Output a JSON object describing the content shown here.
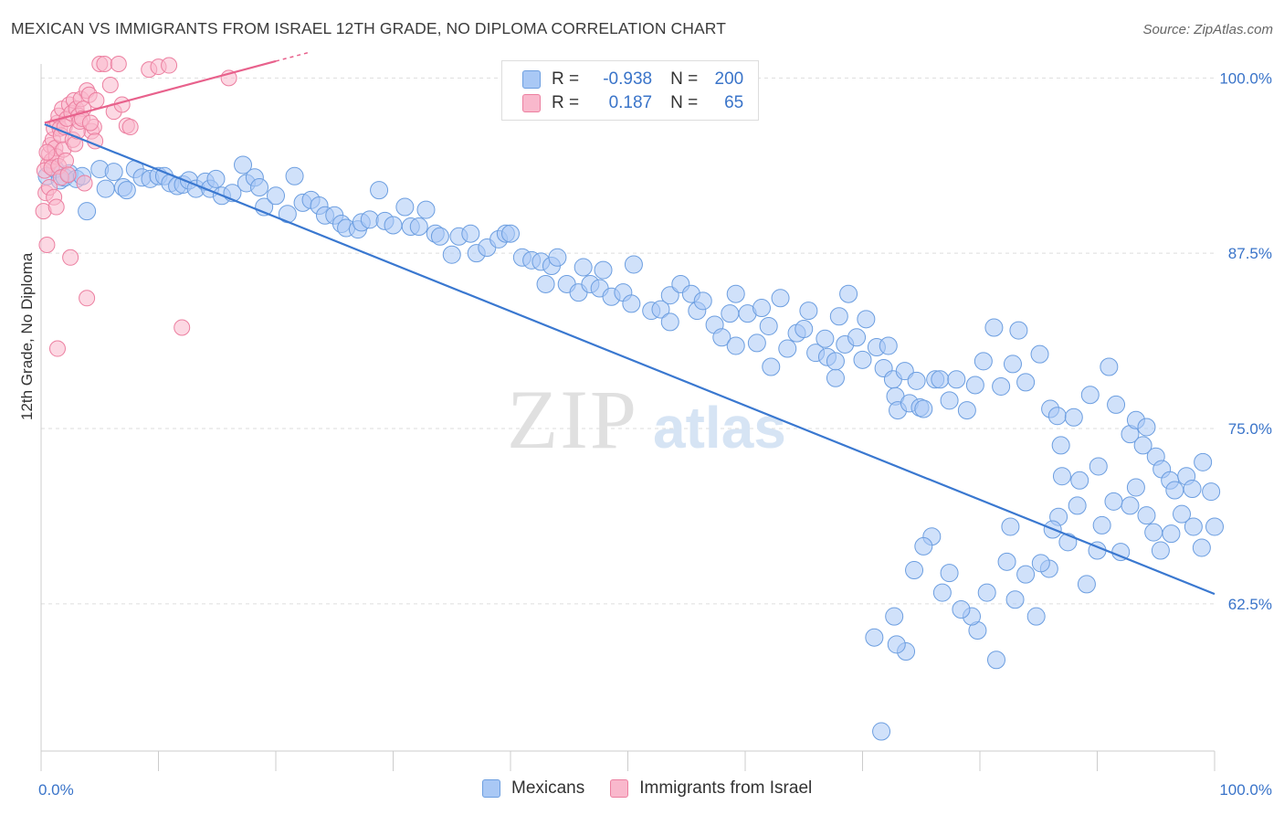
{
  "title": "MEXICAN VS IMMIGRANTS FROM ISRAEL 12TH GRADE, NO DIPLOMA CORRELATION CHART",
  "source": "Source: ZipAtlas.com",
  "watermark": {
    "zip": "ZIP",
    "atlas": "atlas"
  },
  "legend": {
    "rows": [
      {
        "r_label": "R =",
        "r_value": "-0.938",
        "n_label": "N =",
        "n_value": "200",
        "color": "#a9c8f5",
        "border": "#6c9ee0"
      },
      {
        "r_label": "R =",
        "r_value": "0.187",
        "n_label": "N =",
        "n_value": "65",
        "color": "#f9b8cc",
        "border": "#ec7fa0"
      }
    ]
  },
  "colors": {
    "mexicans_fill": "#a9c8f5",
    "mexicans_stroke": "#6c9ee0",
    "mexicans_line": "#3a78d0",
    "israel_fill": "#f9b8cc",
    "israel_stroke": "#ec7fa0",
    "israel_line": "#e8618c",
    "axis_text": "#3a74c9",
    "grid": "#dddddd"
  },
  "chart_data": {
    "type": "scatter",
    "title": "MEXICAN VS IMMIGRANTS FROM ISRAEL 12TH GRADE, NO DIPLOMA CORRELATION CHART",
    "xlabel": "",
    "ylabel": "12th Grade, No Diploma",
    "xlim": [
      0,
      100
    ],
    "ylim": [
      52,
      101
    ],
    "x_tick_labels": [
      "0.0%",
      "100.0%"
    ],
    "y_tick_labels": [
      "100.0%",
      "87.5%",
      "75.0%",
      "62.5%"
    ],
    "y_ticks": [
      100,
      87.5,
      75,
      62.5
    ],
    "grid": true,
    "legend_placement": "bottom-center",
    "series": [
      {
        "name": "Mexicans",
        "r": -0.938,
        "n": 200,
        "trend": {
          "x": [
            0.3,
            100
          ],
          "y": [
            96.7,
            63.2
          ]
        },
        "points": [
          [
            0.5,
            93
          ],
          [
            1.2,
            93.5
          ],
          [
            1.6,
            92.7
          ],
          [
            2,
            92.9
          ],
          [
            2.4,
            93.2
          ],
          [
            3,
            92.8
          ],
          [
            3.5,
            93
          ],
          [
            3.9,
            90.5
          ],
          [
            5,
            93.5
          ],
          [
            5.5,
            92.1
          ],
          [
            6.2,
            93.3
          ],
          [
            7,
            92.2
          ],
          [
            7.3,
            92
          ],
          [
            8,
            93.5
          ],
          [
            8.6,
            92.9
          ],
          [
            9.3,
            92.8
          ],
          [
            10,
            93
          ],
          [
            10.5,
            93
          ],
          [
            11,
            92.5
          ],
          [
            11.6,
            92.3
          ],
          [
            12.1,
            92.4
          ],
          [
            12.6,
            92.7
          ],
          [
            13.2,
            92.1
          ],
          [
            14,
            92.6
          ],
          [
            14.4,
            92.1
          ],
          [
            14.9,
            92.8
          ],
          [
            15.4,
            91.6
          ],
          [
            16.3,
            91.8
          ],
          [
            17.2,
            93.8
          ],
          [
            17.5,
            92.5
          ],
          [
            18.2,
            92.9
          ],
          [
            18.6,
            92.2
          ],
          [
            19,
            90.8
          ],
          [
            20,
            91.6
          ],
          [
            21,
            90.3
          ],
          [
            21.6,
            93
          ],
          [
            22.3,
            91.1
          ],
          [
            23,
            91.3
          ],
          [
            23.7,
            90.9
          ],
          [
            24.2,
            90.2
          ],
          [
            25,
            90.2
          ],
          [
            25.6,
            89.6
          ],
          [
            26,
            89.3
          ],
          [
            27,
            89.2
          ],
          [
            27.3,
            89.7
          ],
          [
            28,
            89.9
          ],
          [
            28.8,
            92
          ],
          [
            29.3,
            89.8
          ],
          [
            30,
            89.5
          ],
          [
            31,
            90.8
          ],
          [
            31.5,
            89.4
          ],
          [
            32.2,
            89.4
          ],
          [
            32.8,
            90.6
          ],
          [
            33.6,
            88.9
          ],
          [
            34,
            88.7
          ],
          [
            35,
            87.4
          ],
          [
            35.6,
            88.7
          ],
          [
            36.6,
            88.9
          ],
          [
            37.1,
            87.5
          ],
          [
            38,
            87.9
          ],
          [
            39,
            88.5
          ],
          [
            39.6,
            88.9
          ],
          [
            40,
            88.9
          ],
          [
            41,
            87.2
          ],
          [
            41.8,
            87
          ],
          [
            42.6,
            86.9
          ],
          [
            43,
            85.3
          ],
          [
            43.5,
            86.6
          ],
          [
            44,
            87.2
          ],
          [
            44.8,
            85.3
          ],
          [
            45.8,
            84.7
          ],
          [
            46.2,
            86.5
          ],
          [
            46.8,
            85.3
          ],
          [
            47.6,
            85
          ],
          [
            47.9,
            86.3
          ],
          [
            48.6,
            84.4
          ],
          [
            49.6,
            84.7
          ],
          [
            50.3,
            83.9
          ],
          [
            50.5,
            86.7
          ],
          [
            52,
            83.4
          ],
          [
            52.8,
            83.5
          ],
          [
            53.6,
            84.5
          ],
          [
            53.6,
            82.6
          ],
          [
            54.5,
            85.3
          ],
          [
            55.4,
            84.6
          ],
          [
            55.9,
            83.4
          ],
          [
            56.4,
            84.1
          ],
          [
            57.4,
            82.4
          ],
          [
            58,
            81.5
          ],
          [
            58.7,
            83.2
          ],
          [
            59.2,
            84.6
          ],
          [
            59.2,
            80.9
          ],
          [
            60.2,
            83.2
          ],
          [
            61,
            81.1
          ],
          [
            61.4,
            83.6
          ],
          [
            62,
            82.3
          ],
          [
            62.2,
            79.4
          ],
          [
            63,
            84.3
          ],
          [
            63.6,
            80.7
          ],
          [
            64.4,
            81.8
          ],
          [
            65,
            82.1
          ],
          [
            65.4,
            83.4
          ],
          [
            66,
            80.4
          ],
          [
            66.8,
            81.4
          ],
          [
            67,
            80.1
          ],
          [
            67.7,
            78.6
          ],
          [
            67.7,
            79.8
          ],
          [
            68,
            83
          ],
          [
            68.5,
            81
          ],
          [
            68.8,
            84.6
          ],
          [
            69.5,
            81.5
          ],
          [
            70,
            79.9
          ],
          [
            70.3,
            82.8
          ],
          [
            71.2,
            80.8
          ],
          [
            71.8,
            79.3
          ],
          [
            72.2,
            80.9
          ],
          [
            72.6,
            78.5
          ],
          [
            72.8,
            77.3
          ],
          [
            73,
            76.3
          ],
          [
            73.6,
            79.1
          ],
          [
            74,
            76.8
          ],
          [
            74.6,
            78.4
          ],
          [
            74.9,
            76.5
          ],
          [
            75.2,
            76.4
          ],
          [
            76.2,
            78.5
          ],
          [
            76.6,
            78.5
          ],
          [
            77.4,
            77
          ],
          [
            78,
            78.5
          ],
          [
            78.9,
            76.3
          ],
          [
            79.6,
            78.1
          ],
          [
            80.3,
            79.8
          ],
          [
            81.2,
            82.2
          ],
          [
            81.8,
            78
          ],
          [
            82.8,
            79.6
          ],
          [
            83.3,
            82
          ],
          [
            83.9,
            78.3
          ],
          [
            85.1,
            80.3
          ],
          [
            86,
            76.4
          ],
          [
            86.6,
            75.9
          ],
          [
            86.9,
            73.8
          ],
          [
            87,
            71.6
          ],
          [
            88,
            75.8
          ],
          [
            88.5,
            71.3
          ],
          [
            89.4,
            77.4
          ],
          [
            90.1,
            72.3
          ],
          [
            91,
            79.4
          ],
          [
            91.6,
            76.7
          ],
          [
            92.8,
            74.6
          ],
          [
            93.3,
            75.6
          ],
          [
            93.9,
            73.8
          ],
          [
            94.2,
            75.1
          ],
          [
            95,
            73
          ],
          [
            95.5,
            72.1
          ],
          [
            96.2,
            71.3
          ],
          [
            96.6,
            70.6
          ],
          [
            97.6,
            71.6
          ],
          [
            98.1,
            70.7
          ],
          [
            99,
            72.6
          ],
          [
            99.7,
            70.5
          ],
          [
            100,
            68
          ],
          [
            98.9,
            66.5
          ],
          [
            98.2,
            68
          ],
          [
            97.2,
            68.9
          ],
          [
            96.3,
            67.5
          ],
          [
            95.4,
            66.3
          ],
          [
            94.8,
            67.6
          ],
          [
            94.2,
            68.8
          ],
          [
            93.3,
            70.8
          ],
          [
            92.8,
            69.5
          ],
          [
            92,
            66.2
          ],
          [
            91.4,
            69.8
          ],
          [
            90.4,
            68.1
          ],
          [
            90,
            66.3
          ],
          [
            89.1,
            63.9
          ],
          [
            88.3,
            69.5
          ],
          [
            87.5,
            66.9
          ],
          [
            86.7,
            68.7
          ],
          [
            86.2,
            67.8
          ],
          [
            85.9,
            65
          ],
          [
            85.2,
            65.4
          ],
          [
            84.8,
            61.6
          ],
          [
            83.9,
            64.6
          ],
          [
            83,
            62.8
          ],
          [
            82.6,
            68
          ],
          [
            82.3,
            65.5
          ],
          [
            81.4,
            58.5
          ],
          [
            80.6,
            63.3
          ],
          [
            79.8,
            60.6
          ],
          [
            79.3,
            61.6
          ],
          [
            78.4,
            62.1
          ],
          [
            77.4,
            64.7
          ],
          [
            76.8,
            63.3
          ],
          [
            75.9,
            67.3
          ],
          [
            75.2,
            66.6
          ],
          [
            74.4,
            64.9
          ],
          [
            73.7,
            59.1
          ],
          [
            72.9,
            59.6
          ],
          [
            72.7,
            61.6
          ],
          [
            71.6,
            53.4
          ],
          [
            71,
            60.1
          ]
        ]
      },
      {
        "name": "Immigrants from Israel",
        "r": 0.187,
        "n": 65,
        "trend": {
          "x": [
            0.3,
            20
          ],
          "y": [
            96.8,
            101.2
          ]
        },
        "points": [
          [
            0.2,
            90.5
          ],
          [
            0.4,
            91.8
          ],
          [
            0.5,
            88.1
          ],
          [
            0.6,
            93.8
          ],
          [
            0.7,
            94.6
          ],
          [
            0.8,
            95.2
          ],
          [
            0.9,
            94.1
          ],
          [
            1,
            95.6
          ],
          [
            1.1,
            96.4
          ],
          [
            1.2,
            95
          ],
          [
            1.3,
            94.4
          ],
          [
            1.4,
            96.8
          ],
          [
            1.5,
            97.3
          ],
          [
            1.6,
            96.4
          ],
          [
            1.7,
            95.9
          ],
          [
            1.8,
            97.8
          ],
          [
            2,
            96.5
          ],
          [
            2.2,
            97.1
          ],
          [
            2.4,
            98.1
          ],
          [
            2.6,
            97.5
          ],
          [
            2.8,
            98.4
          ],
          [
            3,
            97.8
          ],
          [
            3.2,
            97.3
          ],
          [
            3.4,
            98.5
          ],
          [
            3.6,
            97.8
          ],
          [
            3.9,
            99.1
          ],
          [
            4.1,
            98.8
          ],
          [
            4.3,
            96.2
          ],
          [
            4.5,
            96.5
          ],
          [
            4.7,
            98.4
          ],
          [
            0.3,
            93.4
          ],
          [
            0.5,
            94.7
          ],
          [
            0.7,
            92.2
          ],
          [
            0.9,
            93.6
          ],
          [
            1.1,
            91.5
          ],
          [
            1.3,
            90.8
          ],
          [
            1.5,
            93.7
          ],
          [
            1.7,
            92.9
          ],
          [
            1.9,
            94.9
          ],
          [
            2.1,
            94.1
          ],
          [
            2.3,
            93.1
          ],
          [
            2.5,
            87.2
          ],
          [
            2.7,
            95.6
          ],
          [
            2.9,
            95.3
          ],
          [
            3.1,
            96.2
          ],
          [
            3.3,
            96.9
          ],
          [
            3.5,
            97.1
          ],
          [
            3.7,
            92.5
          ],
          [
            3.9,
            84.3
          ],
          [
            4.2,
            96.8
          ],
          [
            4.6,
            95.5
          ],
          [
            5,
            101
          ],
          [
            5.4,
            101
          ],
          [
            5.9,
            99.5
          ],
          [
            6.2,
            97.6
          ],
          [
            6.6,
            101
          ],
          [
            6.9,
            98.1
          ],
          [
            7.3,
            96.6
          ],
          [
            7.6,
            96.5
          ],
          [
            9.2,
            100.6
          ],
          [
            10,
            100.8
          ],
          [
            10.9,
            100.9
          ],
          [
            12,
            82.2
          ],
          [
            1.4,
            80.7
          ],
          [
            16,
            100
          ]
        ]
      }
    ]
  }
}
